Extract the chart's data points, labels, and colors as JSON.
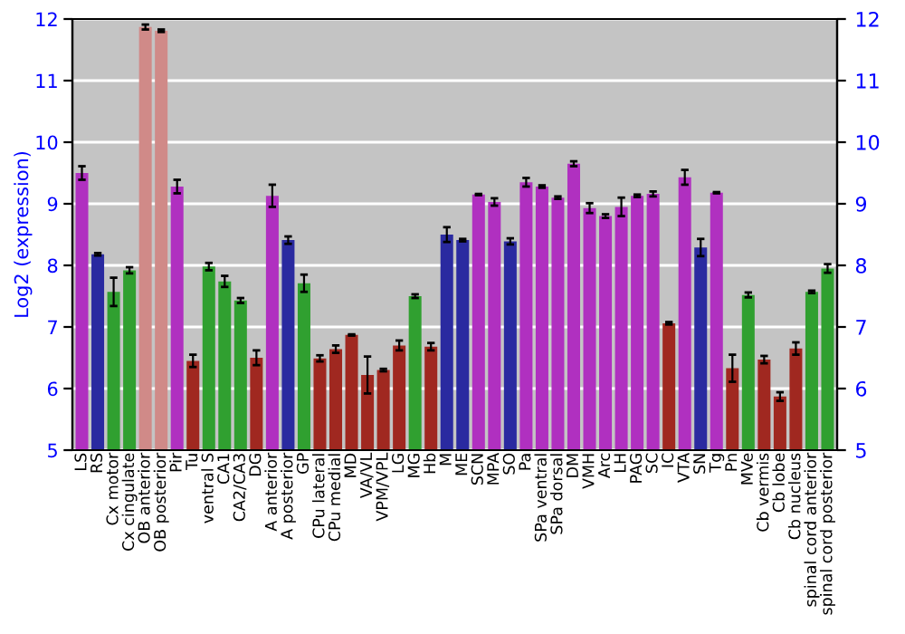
{
  "chart_data": {
    "type": "bar",
    "ylabel": "Log2 (expression)",
    "categories": [
      "LS",
      "RS",
      "Cx motor",
      "Cx cingulate",
      "OB anterior",
      "OB posterior",
      "Pir",
      "Tu",
      "ventral S",
      "CA1",
      "CA2/CA3",
      "DG",
      "A anterior",
      "A posterior",
      "GP",
      "CPu lateral",
      "CPu medial",
      "MD",
      "VA/VL",
      "VPM/VPL",
      "LG",
      "MG",
      "Hb",
      "M",
      "ME",
      "SCN",
      "MPA",
      "SO",
      "Pa",
      "SPa ventral",
      "SPa dorsal",
      "DM",
      "VMH",
      "Arc",
      "LH",
      "PAG",
      "SC",
      "IC",
      "VTA",
      "SN",
      "Tg",
      "Pn",
      "MVe",
      "Cb vermis",
      "Cb lobe",
      "Cb nucleus",
      "spinal cord anterior",
      "spinal cord posterior"
    ],
    "values": [
      9.5,
      8.18,
      7.57,
      7.92,
      11.87,
      11.81,
      9.28,
      6.45,
      7.98,
      7.74,
      7.43,
      6.5,
      9.13,
      8.41,
      7.71,
      6.49,
      6.64,
      6.87,
      6.22,
      6.3,
      6.7,
      7.5,
      6.68,
      8.5,
      8.41,
      9.15,
      9.03,
      8.39,
      9.35,
      9.28,
      9.1,
      9.65,
      8.93,
      8.8,
      8.95,
      9.13,
      9.16,
      7.06,
      9.43,
      8.29,
      9.18,
      6.33,
      7.52,
      6.47,
      5.87,
      6.65,
      7.57,
      7.95
    ],
    "errors": [
      0.11,
      0.02,
      0.23,
      0.05,
      0.04,
      0.02,
      0.11,
      0.1,
      0.06,
      0.09,
      0.04,
      0.12,
      0.18,
      0.06,
      0.14,
      0.05,
      0.06,
      0.01,
      0.3,
      0.02,
      0.08,
      0.03,
      0.06,
      0.12,
      0.02,
      0.01,
      0.06,
      0.05,
      0.07,
      0.02,
      0.02,
      0.04,
      0.08,
      0.03,
      0.15,
      0.02,
      0.04,
      0.02,
      0.12,
      0.14,
      0.01,
      0.22,
      0.04,
      0.06,
      0.07,
      0.1,
      0.02,
      0.07
    ],
    "colors": [
      "#b030c0",
      "#2a2aa0",
      "#30a030",
      "#30a030",
      "#d08a88",
      "#d08a88",
      "#b030c0",
      "#a02820",
      "#30a030",
      "#30a030",
      "#30a030",
      "#a02820",
      "#b030c0",
      "#2a2aa0",
      "#30a030",
      "#a02820",
      "#a02820",
      "#a02820",
      "#a02820",
      "#a02820",
      "#a02820",
      "#30a030",
      "#a02820",
      "#2a2aa0",
      "#2a2aa0",
      "#b030c0",
      "#b030c0",
      "#2a2aa0",
      "#b030c0",
      "#b030c0",
      "#b030c0",
      "#b030c0",
      "#b030c0",
      "#b030c0",
      "#b030c0",
      "#b030c0",
      "#b030c0",
      "#a02820",
      "#b030c0",
      "#2a2aa0",
      "#b030c0",
      "#a02820",
      "#30a030",
      "#a02820",
      "#a02820",
      "#a02820",
      "#30a030",
      "#30a030"
    ],
    "ylim": [
      5,
      12
    ],
    "yticks": [
      5,
      6,
      7,
      8,
      9,
      10,
      11,
      12
    ],
    "y2lim": [
      5,
      12
    ],
    "y2ticks": [
      5,
      6,
      7,
      8,
      9,
      10,
      11,
      12
    ],
    "grid": "y"
  }
}
